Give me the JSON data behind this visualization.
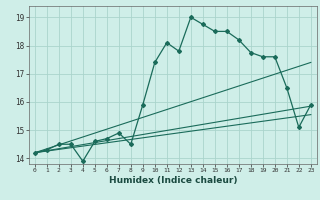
{
  "title": "",
  "xlabel": "Humidex (Indice chaleur)",
  "ylabel": "",
  "bg_color": "#cfeee8",
  "grid_color": "#aad4cc",
  "line_color": "#1a6b5a",
  "marker_color": "#1a6b5a",
  "xlim": [
    -0.5,
    23.5
  ],
  "ylim": [
    13.8,
    19.4
  ],
  "xticks": [
    0,
    1,
    2,
    3,
    4,
    5,
    6,
    7,
    8,
    9,
    10,
    11,
    12,
    13,
    14,
    15,
    16,
    17,
    18,
    19,
    20,
    21,
    22,
    23
  ],
  "yticks": [
    14,
    15,
    16,
    17,
    18,
    19
  ],
  "series1_x": [
    0,
    1,
    2,
    3,
    4,
    5,
    6,
    7,
    8,
    9,
    10,
    11,
    12,
    13,
    14,
    15,
    16,
    17,
    18,
    19,
    20,
    21,
    22,
    23
  ],
  "series1_y": [
    14.2,
    14.3,
    14.5,
    14.5,
    13.9,
    14.6,
    14.7,
    14.9,
    14.5,
    15.9,
    17.4,
    18.1,
    17.8,
    19.0,
    18.75,
    18.5,
    18.5,
    18.2,
    17.75,
    17.6,
    17.6,
    16.5,
    15.1,
    15.9
  ],
  "series2_x": [
    0,
    23
  ],
  "series2_y": [
    14.2,
    17.4
  ],
  "series3_x": [
    0,
    23
  ],
  "series3_y": [
    14.2,
    15.85
  ],
  "series4_x": [
    0,
    23
  ],
  "series4_y": [
    14.2,
    15.55
  ]
}
